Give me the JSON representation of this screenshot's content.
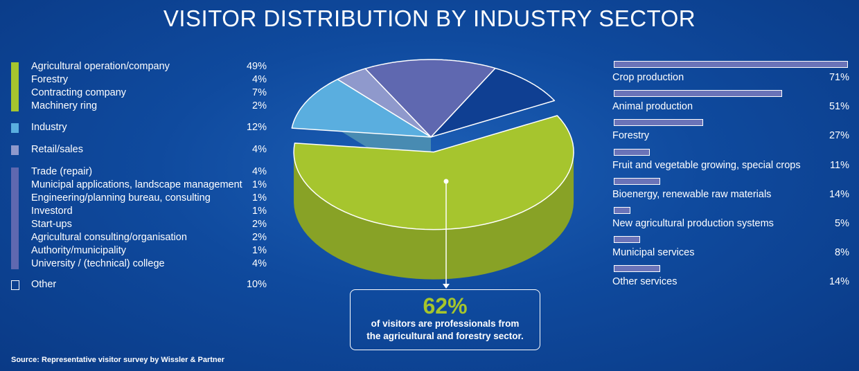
{
  "title": "VISITOR DISTRIBUTION BY INDUSTRY SECTOR",
  "colors": {
    "agri": "#a6c52e",
    "industry": "#5aaedf",
    "retail": "#8f99cc",
    "trade": "#5f68b0",
    "other": "#0f3f92"
  },
  "legend_groups": [
    {
      "color": "#a6c52e",
      "items": [
        {
          "label": "Agricultural operation/company",
          "value": "49%"
        },
        {
          "label": "Forestry",
          "value": "4%"
        },
        {
          "label": "Contracting company",
          "value": "7%"
        },
        {
          "label": "Machinery ring",
          "value": "2%"
        }
      ]
    },
    {
      "color": "#5aaedf",
      "items": [
        {
          "label": "Industry",
          "value": "12%"
        }
      ]
    },
    {
      "color": "#8f99cc",
      "items": [
        {
          "label": "Retail/sales",
          "value": "4%"
        }
      ]
    },
    {
      "color": "#5f68b0",
      "items": [
        {
          "label": "Trade (repair)",
          "value": "4%"
        },
        {
          "label": "Municipal applications, landscape management",
          "value": "1%"
        },
        {
          "label": "Engineering/planning bureau, consulting",
          "value": "1%"
        },
        {
          "label": "Investord",
          "value": "1%"
        },
        {
          "label": "Start-ups",
          "value": "2%"
        },
        {
          "label": "Agricultural consulting/organisation",
          "value": "2%"
        },
        {
          "label": "Authority/municipality",
          "value": "1%"
        },
        {
          "label": "University / (technical) college",
          "value": "4%"
        }
      ]
    },
    {
      "color": "#0f3f92",
      "items": [
        {
          "label": "Other",
          "value": "10%"
        }
      ]
    }
  ],
  "callout": {
    "value": "62%",
    "line1": "of visitors are professionals from",
    "line2": "the agricultural and forestry sector."
  },
  "source": "Source: Representative visitor survey by Wissler & Partner",
  "chart_data": [
    {
      "type": "pie",
      "title": "VISITOR DISTRIBUTION BY INDUSTRY SECTOR",
      "slices": [
        {
          "label": "Agricultural operation/company, Forestry, Contracting company, Machinery ring",
          "value": 62
        },
        {
          "label": "Industry",
          "value": 12
        },
        {
          "label": "Retail/sales",
          "value": 4
        },
        {
          "label": "Trade (repair), Municipal applications, Engineering, Investord, Start-ups, Agricultural consulting, Authority, University",
          "value": 16
        },
        {
          "label": "Other",
          "value": 10
        }
      ],
      "exploded_slice": "Agricultural operation/company, Forestry, Contracting company, Machinery ring"
    },
    {
      "type": "bar",
      "orientation": "horizontal",
      "categories": [
        "Crop production",
        "Animal production",
        "Forestry",
        "Fruit and vegetable growing, special crops",
        "Bioenergy, renewable raw materials",
        "New agricultural production systems",
        "Municipal services",
        "Other services"
      ],
      "values": [
        71,
        51,
        27,
        11,
        14,
        5,
        8,
        14
      ],
      "value_labels": [
        "71%",
        "51%",
        "27%",
        "11%",
        "14%",
        "5%",
        "8%",
        "14%"
      ],
      "xlim": [
        0,
        71
      ]
    }
  ]
}
